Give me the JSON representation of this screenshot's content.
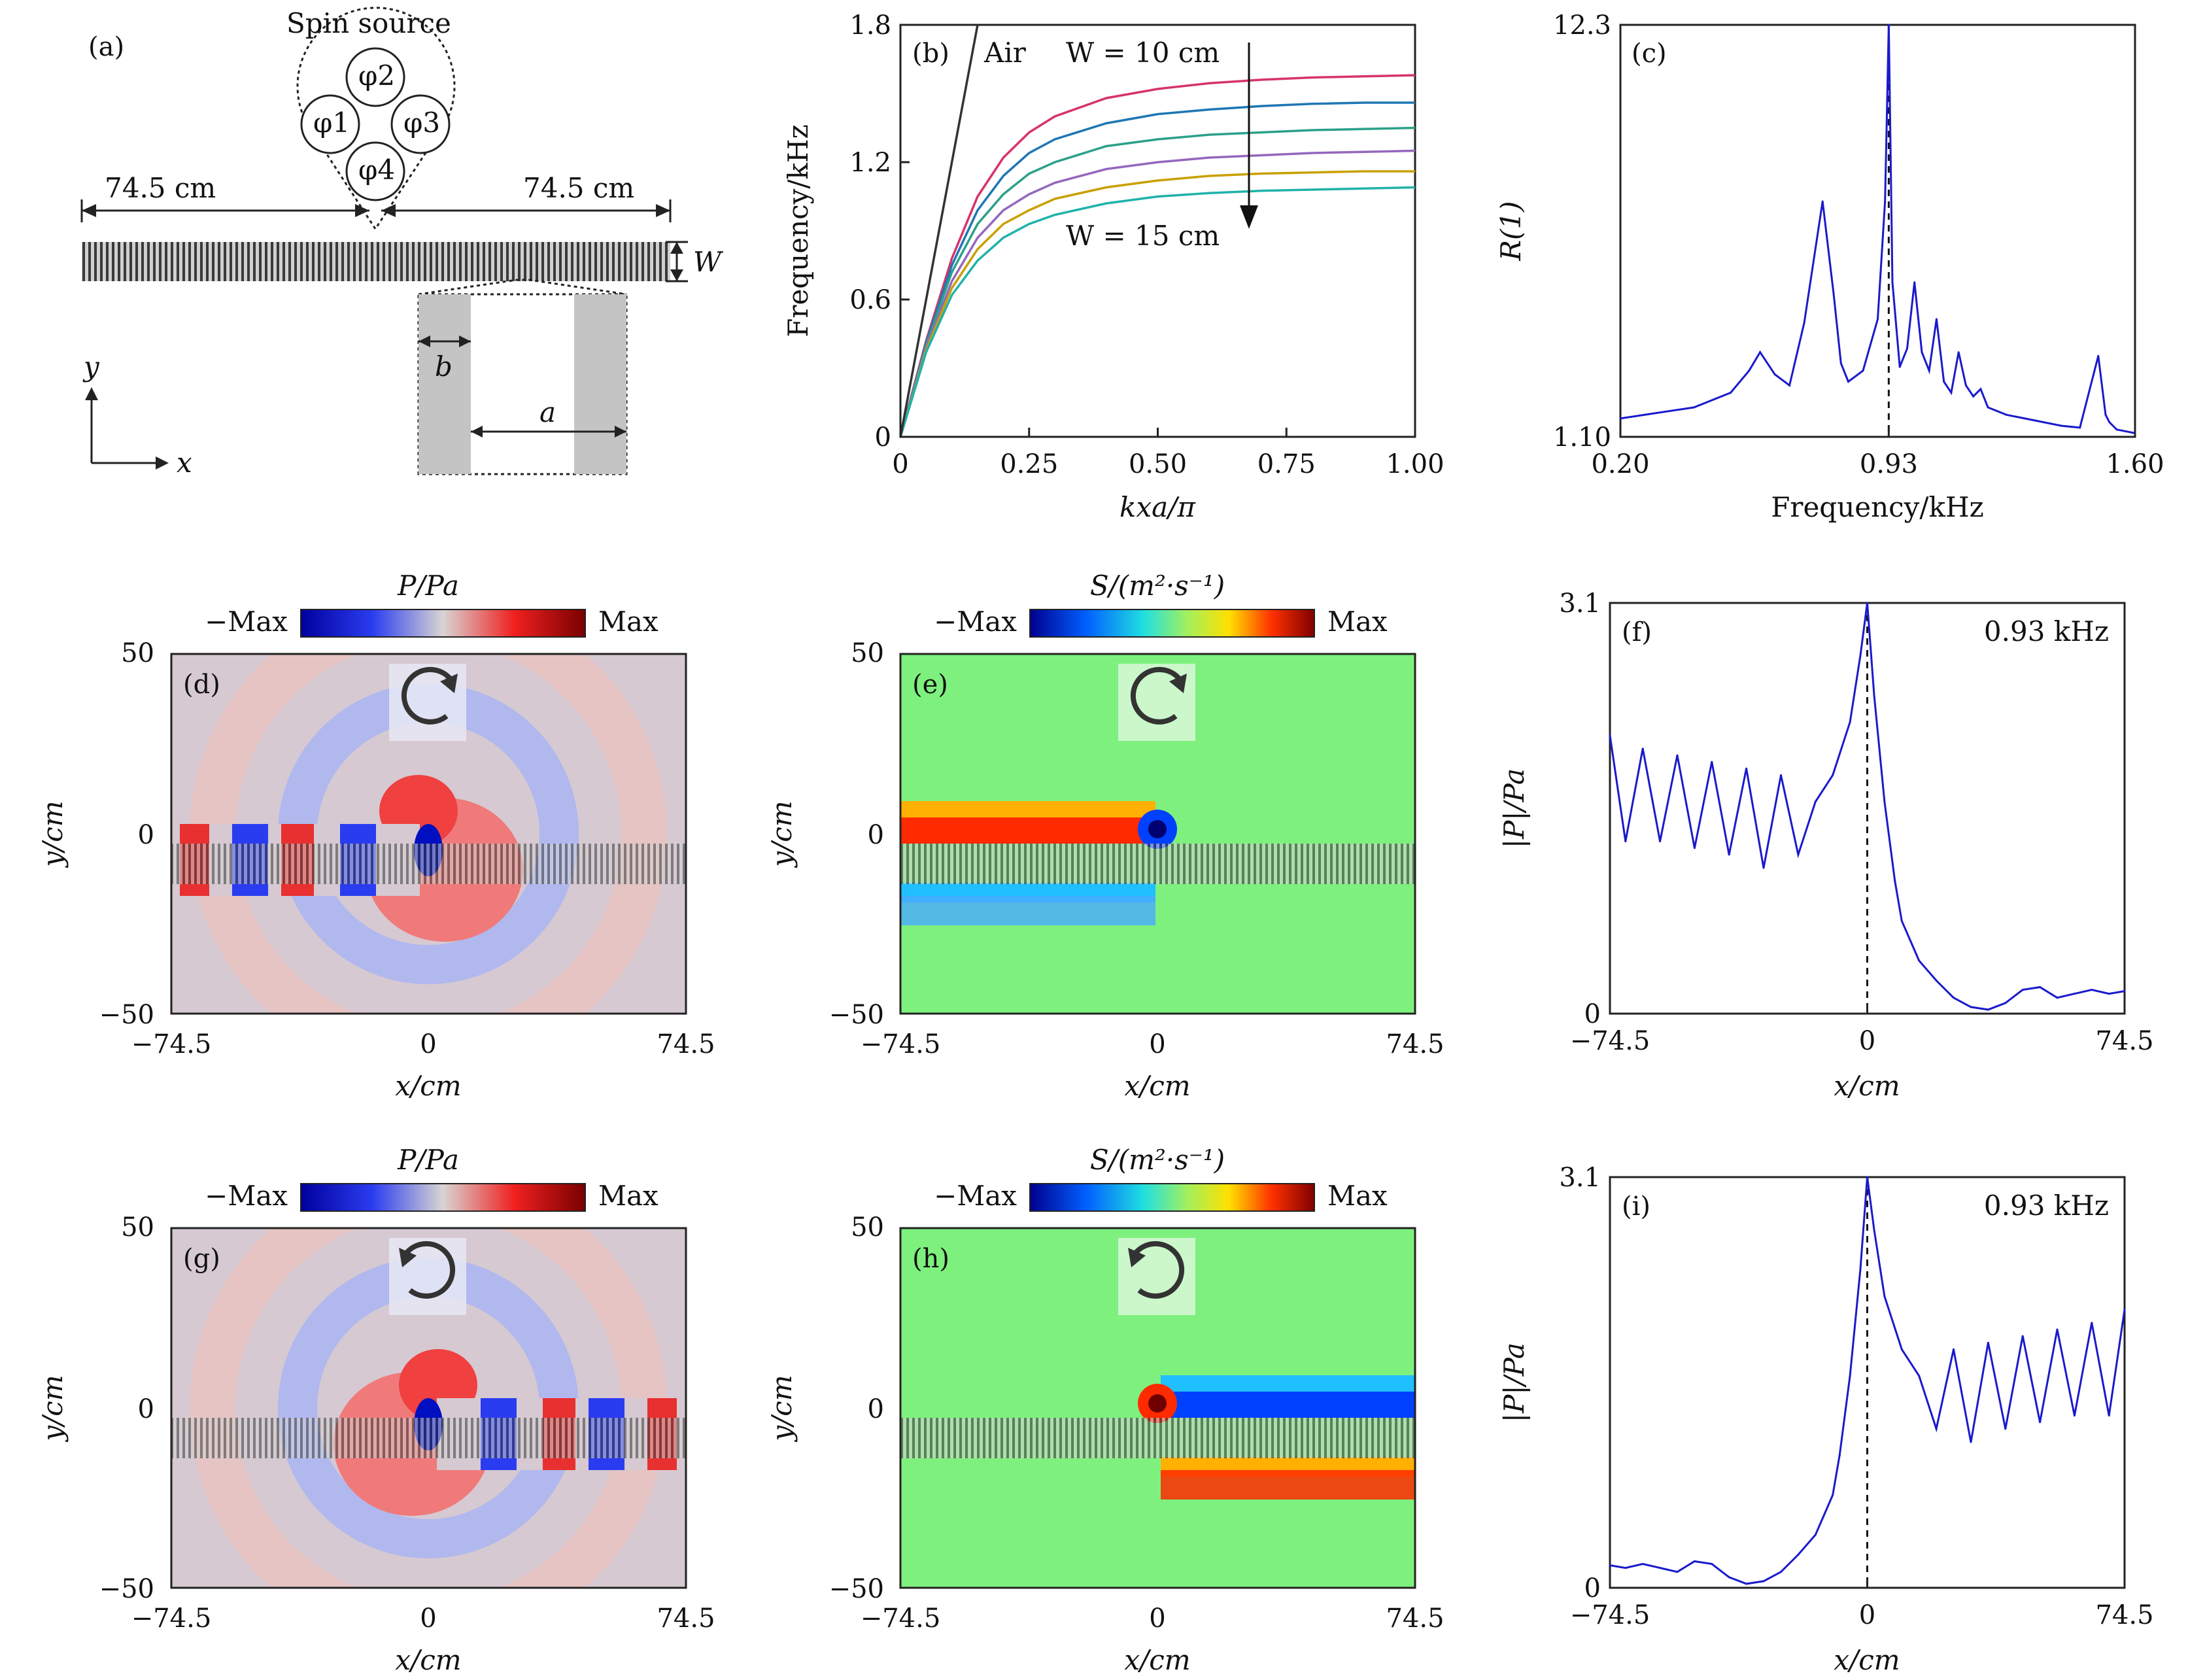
{
  "colors": {
    "curve": "#1a1acc",
    "axis": "#222222",
    "bar": "#444444",
    "air_line": "#333333"
  },
  "panel_a": {
    "label": "(a)",
    "source_title": "Spin source",
    "phases": [
      "φ2",
      "φ1",
      "φ3",
      "φ4"
    ],
    "dim_left": "74.5 cm",
    "dim_right": "74.5 cm",
    "width_label": "W",
    "b_label": "b",
    "a_label": "a",
    "y_label": "y",
    "x_label": "x"
  },
  "chart_data": [
    {
      "panel": "(b)",
      "type": "line",
      "xlabel": "kxa/π",
      "ylabel": "Frequency/kHz",
      "xlim": [
        0,
        1
      ],
      "ylim": [
        0,
        1.8
      ],
      "xticks": [
        "0",
        "0.25",
        "0.50",
        "0.75",
        "1.00"
      ],
      "yticks": [
        "0",
        "0.6",
        "1.2",
        "1.8"
      ],
      "annotations": {
        "air": "Air",
        "top": "W = 10 cm",
        "bottom": "W = 15 cm"
      },
      "series": [
        {
          "color": "#d6336c",
          "x": [
            0,
            0.05,
            0.1,
            0.15,
            0.2,
            0.25,
            0.3,
            0.4,
            0.5,
            0.6,
            0.7,
            0.8,
            0.9,
            1.0
          ],
          "values": [
            0,
            0.42,
            0.78,
            1.05,
            1.22,
            1.33,
            1.4,
            1.48,
            1.52,
            1.545,
            1.56,
            1.57,
            1.575,
            1.58
          ]
        },
        {
          "color": "#1f77b4",
          "x": [
            0,
            0.05,
            0.1,
            0.15,
            0.2,
            0.25,
            0.3,
            0.4,
            0.5,
            0.6,
            0.7,
            0.8,
            0.9,
            1.0
          ],
          "values": [
            0,
            0.41,
            0.75,
            0.99,
            1.14,
            1.24,
            1.3,
            1.37,
            1.41,
            1.43,
            1.445,
            1.455,
            1.46,
            1.46
          ]
        },
        {
          "color": "#2ca089",
          "x": [
            0,
            0.05,
            0.1,
            0.15,
            0.2,
            0.25,
            0.3,
            0.4,
            0.5,
            0.6,
            0.7,
            0.8,
            0.9,
            1.0
          ],
          "values": [
            0,
            0.4,
            0.72,
            0.93,
            1.06,
            1.15,
            1.2,
            1.27,
            1.3,
            1.32,
            1.33,
            1.34,
            1.345,
            1.35
          ]
        },
        {
          "color": "#9467bd",
          "x": [
            0,
            0.05,
            0.1,
            0.15,
            0.2,
            0.25,
            0.3,
            0.4,
            0.5,
            0.6,
            0.7,
            0.8,
            0.9,
            1.0
          ],
          "values": [
            0,
            0.39,
            0.68,
            0.87,
            0.99,
            1.06,
            1.11,
            1.17,
            1.2,
            1.22,
            1.23,
            1.24,
            1.245,
            1.25
          ]
        },
        {
          "color": "#c9a000",
          "x": [
            0,
            0.05,
            0.1,
            0.15,
            0.2,
            0.25,
            0.3,
            0.4,
            0.5,
            0.6,
            0.7,
            0.8,
            0.9,
            1.0
          ],
          "values": [
            0,
            0.38,
            0.65,
            0.82,
            0.93,
            0.99,
            1.04,
            1.09,
            1.12,
            1.14,
            1.15,
            1.155,
            1.16,
            1.16
          ]
        },
        {
          "color": "#20b2aa",
          "x": [
            0,
            0.05,
            0.1,
            0.15,
            0.2,
            0.25,
            0.3,
            0.4,
            0.5,
            0.6,
            0.7,
            0.8,
            0.9,
            1.0
          ],
          "values": [
            0,
            0.37,
            0.62,
            0.77,
            0.87,
            0.93,
            0.97,
            1.02,
            1.05,
            1.065,
            1.075,
            1.08,
            1.085,
            1.09
          ]
        },
        {
          "color": "#333333",
          "x": [
            0,
            0.15
          ],
          "values": [
            0,
            1.8
          ]
        }
      ]
    },
    {
      "panel": "(c)",
      "type": "line",
      "xlabel": "Frequency/kHz",
      "ylabel": "R(1)",
      "xlim": [
        0.2,
        1.6
      ],
      "ylim": [
        1.1,
        12.3
      ],
      "xticks": [
        "0.20",
        "0.93",
        "1.60"
      ],
      "yticks": [
        "1.10",
        "12.3"
      ],
      "marker_x": 0.93,
      "x": [
        0.2,
        0.3,
        0.4,
        0.5,
        0.55,
        0.58,
        0.62,
        0.66,
        0.7,
        0.75,
        0.78,
        0.8,
        0.82,
        0.86,
        0.9,
        0.92,
        0.93,
        0.94,
        0.96,
        0.98,
        1.0,
        1.02,
        1.04,
        1.06,
        1.08,
        1.1,
        1.12,
        1.14,
        1.16,
        1.18,
        1.2,
        1.25,
        1.3,
        1.35,
        1.4,
        1.45,
        1.5,
        1.52,
        1.53,
        1.55,
        1.6
      ],
      "values": [
        1.6,
        1.75,
        1.9,
        2.3,
        2.9,
        3.4,
        2.8,
        2.5,
        4.2,
        7.5,
        5.0,
        3.1,
        2.6,
        2.9,
        4.3,
        7.5,
        12.3,
        5.3,
        3.0,
        3.5,
        5.3,
        3.4,
        2.9,
        4.3,
        2.6,
        2.3,
        3.4,
        2.5,
        2.2,
        2.4,
        1.9,
        1.7,
        1.6,
        1.5,
        1.4,
        1.35,
        3.3,
        1.7,
        1.5,
        1.3,
        1.2
      ]
    },
    {
      "panel": "(f)",
      "type": "line",
      "xlabel": "x/cm",
      "ylabel": "|P|/Pa",
      "annotation": "0.93 kHz",
      "xlim": [
        -74.5,
        74.5
      ],
      "ylim": [
        0,
        3.1
      ],
      "xticks": [
        "−74.5",
        "0",
        "74.5"
      ],
      "yticks": [
        "0",
        "3.1"
      ],
      "marker_x": 0,
      "x": [
        -74.5,
        -70,
        -65,
        -60,
        -55,
        -50,
        -45,
        -40,
        -35,
        -30,
        -25,
        -20,
        -15,
        -10,
        -5,
        -2,
        0,
        2,
        5,
        8,
        10,
        15,
        20,
        25,
        30,
        35,
        40,
        45,
        50,
        55,
        60,
        65,
        70,
        74.5
      ],
      "values": [
        2.1,
        1.3,
        2.0,
        1.3,
        1.95,
        1.25,
        1.9,
        1.2,
        1.85,
        1.1,
        1.8,
        1.2,
        1.6,
        1.8,
        2.2,
        2.7,
        3.1,
        2.4,
        1.6,
        1.0,
        0.7,
        0.4,
        0.25,
        0.12,
        0.05,
        0.03,
        0.08,
        0.18,
        0.2,
        0.12,
        0.15,
        0.18,
        0.15,
        0.17
      ]
    },
    {
      "panel": "(i)",
      "type": "line",
      "xlabel": "x/cm",
      "ylabel": "|P|/Pa",
      "annotation": "0.93 kHz",
      "xlim": [
        -74.5,
        74.5
      ],
      "ylim": [
        0,
        3.1
      ],
      "xticks": [
        "−74.5",
        "0",
        "74.5"
      ],
      "yticks": [
        "0",
        "3.1"
      ],
      "marker_x": 0,
      "x": [
        -74.5,
        -70,
        -65,
        -60,
        -55,
        -50,
        -45,
        -40,
        -35,
        -30,
        -25,
        -20,
        -15,
        -10,
        -8,
        -5,
        -2,
        0,
        2,
        5,
        10,
        15,
        20,
        25,
        30,
        35,
        40,
        45,
        50,
        55,
        60,
        65,
        70,
        74.5
      ],
      "values": [
        0.17,
        0.15,
        0.18,
        0.15,
        0.12,
        0.2,
        0.18,
        0.08,
        0.03,
        0.05,
        0.12,
        0.25,
        0.4,
        0.7,
        1.0,
        1.6,
        2.4,
        3.1,
        2.7,
        2.2,
        1.8,
        1.6,
        1.2,
        1.8,
        1.1,
        1.85,
        1.2,
        1.9,
        1.25,
        1.95,
        1.3,
        2.0,
        1.3,
        2.1
      ]
    }
  ],
  "fields": [
    {
      "panel": "(d)",
      "type": "pressure",
      "title": "P/Pa",
      "cb_min": "−Max",
      "cb_max": "Max",
      "xlabel": "x/cm",
      "ylabel": "y/cm",
      "xticks": [
        "−74.5",
        "0",
        "74.5"
      ],
      "yticks": [
        "50",
        "0",
        "−50"
      ],
      "rotation": "clockwise"
    },
    {
      "panel": "(e)",
      "type": "spin",
      "title": "S/(m²·s⁻¹)",
      "cb_min": "−Max",
      "cb_max": "Max",
      "xlabel": "x/cm",
      "ylabel": "y/cm",
      "xticks": [
        "−74.5",
        "0",
        "74.5"
      ],
      "yticks": [
        "50",
        "0",
        "−50"
      ],
      "rotation": "clockwise"
    },
    {
      "panel": "(g)",
      "type": "pressure",
      "title": "P/Pa",
      "cb_min": "−Max",
      "cb_max": "Max",
      "xlabel": "x/cm",
      "ylabel": "y/cm",
      "xticks": [
        "−74.5",
        "0",
        "74.5"
      ],
      "yticks": [
        "50",
        "0",
        "−50"
      ],
      "rotation": "counterclockwise"
    },
    {
      "panel": "(h)",
      "type": "spin",
      "title": "S/(m²·s⁻¹)",
      "cb_min": "−Max",
      "cb_max": "Max",
      "xlabel": "x/cm",
      "ylabel": "y/cm",
      "xticks": [
        "−74.5",
        "0",
        "74.5"
      ],
      "yticks": [
        "50",
        "0",
        "−50"
      ],
      "rotation": "counterclockwise"
    }
  ]
}
